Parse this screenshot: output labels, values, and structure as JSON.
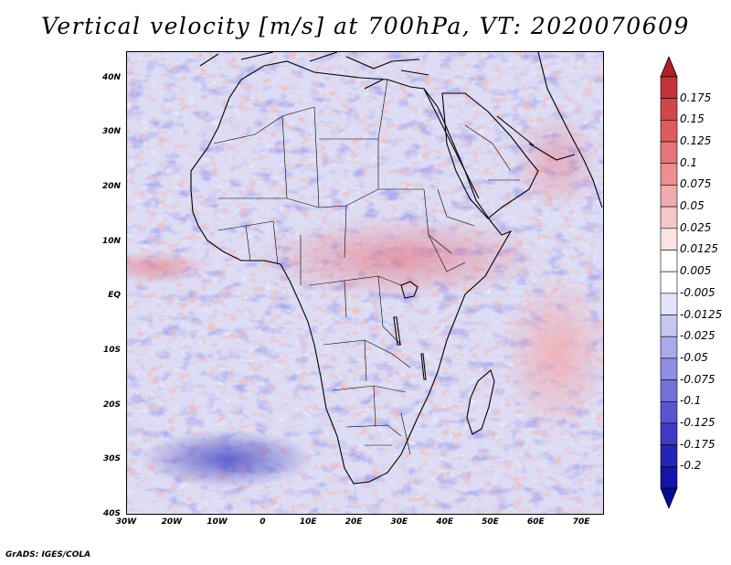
{
  "title": "Vertical velocity [m/s] at 700hPa, VT: 2020070609",
  "footer": "GrADS: IGES/COLA",
  "map": {
    "region": "Africa and surrounding oceans",
    "lon_range": [
      -30,
      75
    ],
    "lat_range": [
      -40,
      45
    ],
    "y_ticks": [
      "40N",
      "30N",
      "20N",
      "10N",
      "EQ",
      "10S",
      "20S",
      "30S",
      "40S"
    ],
    "y_tick_values": [
      40,
      30,
      20,
      10,
      0,
      -10,
      -20,
      -30,
      -40
    ],
    "x_ticks": [
      "30W",
      "20W",
      "10W",
      "0",
      "10E",
      "20E",
      "30E",
      "40E",
      "50E",
      "60E",
      "70E"
    ],
    "x_tick_values": [
      -30,
      -20,
      -10,
      0,
      10,
      20,
      30,
      40,
      50,
      60,
      70
    ]
  },
  "colorbar": {
    "labels": [
      "0.175",
      "0.15",
      "0.125",
      "0.1",
      "0.075",
      "0.05",
      "0.025",
      "0.0125",
      "0.005",
      "-0.005",
      "-0.0125",
      "-0.025",
      "-0.05",
      "-0.075",
      "-0.1",
      "-0.125",
      "-0.175",
      "-0.2"
    ],
    "colors": [
      "#c4323a",
      "#d2454c",
      "#dc5c60",
      "#e47579",
      "#ea9092",
      "#f0acad",
      "#f5c8c8",
      "#fae3e3",
      "#ffffff",
      "#ffffff",
      "#e3e3f8",
      "#c6c6f0",
      "#aaaaea",
      "#8e8ee2",
      "#7272da",
      "#5656d0",
      "#3c3cc6",
      "#2424b8",
      "#1414a8"
    ],
    "top_color": "#b02028",
    "bottom_color": "#0a0a9a"
  }
}
